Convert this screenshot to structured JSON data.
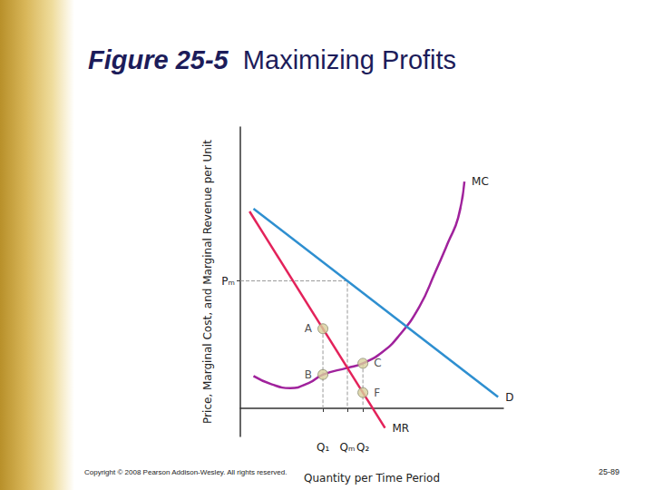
{
  "slide": {
    "figure_number": "Figure 25-5",
    "title": "Maximizing Profits",
    "footer": "Copyright © 2008 Pearson Addison-Wesley. All rights reserved.",
    "page_number": "25-89"
  },
  "chart_data": {
    "type": "line",
    "x_label": "Quantity per Time Period",
    "y_label": "Price, Marginal Cost, and Marginal Revenue per Unit",
    "xlim": [
      0,
      10
    ],
    "ylim": [
      -1,
      10
    ],
    "xticks": [
      {
        "value": 3.14,
        "label": "Q₁"
      },
      {
        "value": 4.07,
        "label": "Qₘ"
      },
      {
        "value": 4.66,
        "label": "Q₂"
      }
    ],
    "yticks": [
      {
        "value": 4.53,
        "label": "Pₘ"
      }
    ],
    "grid": false,
    "series": [
      {
        "name": "MC",
        "color": "#a0229c",
        "x": [
          0.5,
          1.2,
          1.9,
          2.6,
          3.14,
          4.07,
          4.66,
          5.4,
          6.03,
          6.8,
          7.41,
          7.9,
          8.28,
          8.52
        ],
        "values": [
          1.15,
          0.85,
          0.72,
          0.9,
          1.2,
          1.44,
          1.6,
          2.0,
          2.58,
          3.6,
          4.84,
          5.9,
          6.77,
          8.06
        ]
      },
      {
        "name": "D",
        "color": "#2e8fd0",
        "x": [
          0.5,
          9.8
        ],
        "values": [
          7.1,
          0.4
        ]
      },
      {
        "name": "MR",
        "color": "#e3225a",
        "x": [
          0.35,
          5.5
        ],
        "values": [
          7.0,
          -0.7
        ]
      }
    ],
    "guides": [
      {
        "x": [
          0,
          4.07,
          4.07
        ],
        "values": [
          4.53,
          4.53,
          0
        ],
        "line_style": "dashed"
      },
      {
        "x": [
          3.14,
          3.14
        ],
        "values": [
          2.83,
          0
        ],
        "line_style": "dashed"
      },
      {
        "x": [
          4.66,
          4.66
        ],
        "values": [
          1.6,
          0
        ],
        "line_style": "dashed"
      }
    ],
    "points": {
      "labels": [
        "A",
        "B",
        "C",
        "F"
      ],
      "x": [
        3.14,
        3.14,
        4.66,
        4.66
      ],
      "values": [
        2.83,
        1.2,
        1.6,
        0.56
      ],
      "color": "#d8cf9c"
    }
  }
}
